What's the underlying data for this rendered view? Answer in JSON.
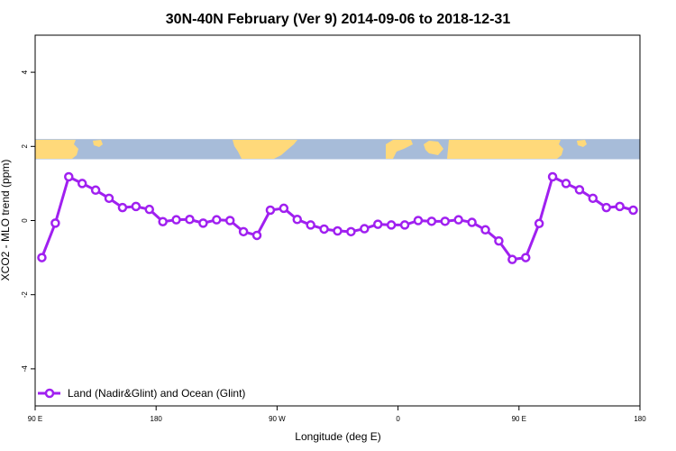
{
  "chart_data": {
    "type": "line",
    "title": "30N-40N February (Ver 9)   2014-09-06 to 2018-12-31",
    "xlabel": "Longitude (deg E)",
    "ylabel": "XCO2 - MLO trend (ppm)",
    "xlim": [
      90,
      540
    ],
    "ylim": [
      -5,
      5
    ],
    "x_ticks": [
      {
        "value": 90,
        "label": "90 E"
      },
      {
        "value": 180,
        "label": "180"
      },
      {
        "value": 270,
        "label": "90 W"
      },
      {
        "value": 360,
        "label": "0"
      },
      {
        "value": 450,
        "label": "90 E"
      },
      {
        "value": 540,
        "label": "180"
      }
    ],
    "y_ticks": [
      {
        "value": -4,
        "label": "-4"
      },
      {
        "value": -2,
        "label": "-2"
      },
      {
        "value": 0,
        "label": "0"
      },
      {
        "value": 2,
        "label": "2"
      },
      {
        "value": 4,
        "label": "4"
      }
    ],
    "grid": false,
    "legend_position": "bottom-left",
    "map_strip": {
      "y_range": [
        1.65,
        2.2
      ],
      "ocean_color": "#a7bcd9",
      "land_color": "#ffd97a"
    },
    "series": [
      {
        "name": "Land (Nadir&Glint) and Ocean (Glint)",
        "color": "#a020f0",
        "marker": "open-circle",
        "x": [
          95,
          105,
          115,
          125,
          135,
          145,
          155,
          165,
          175,
          185,
          195,
          205,
          215,
          225,
          235,
          245,
          255,
          265,
          275,
          285,
          295,
          305,
          315,
          325,
          335,
          345,
          355,
          365,
          375,
          385,
          395,
          405,
          415,
          425,
          435,
          445,
          455,
          465,
          475,
          485,
          495,
          505,
          515,
          525,
          535
        ],
        "y": [
          -1.0,
          -0.07,
          1.18,
          1.0,
          0.82,
          0.6,
          0.35,
          0.38,
          0.3,
          -0.03,
          0.02,
          0.03,
          -0.07,
          0.02,
          0.0,
          -0.3,
          -0.4,
          0.28,
          0.33,
          0.03,
          -0.12,
          -0.23,
          -0.28,
          -0.3,
          -0.22,
          -0.1,
          -0.12,
          -0.12,
          0.0,
          -0.02,
          -0.02,
          0.02,
          -0.05,
          -0.25,
          -0.55,
          -1.05,
          -1.0,
          -0.08,
          1.18,
          1.0,
          0.83,
          0.6,
          0.35,
          0.38,
          0.28
        ]
      }
    ]
  }
}
